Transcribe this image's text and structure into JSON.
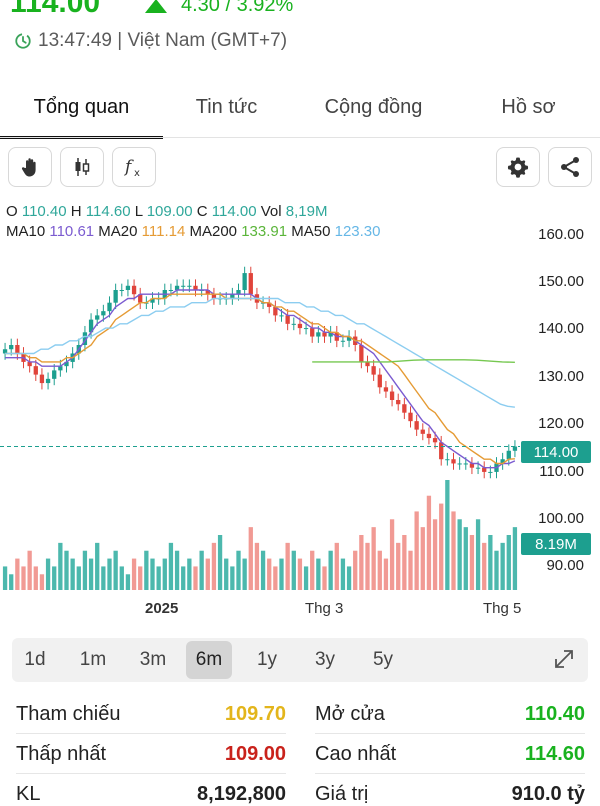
{
  "header": {
    "price": "114.00",
    "change": "4.30 / 3.92%",
    "time": "13:47:49 | Việt Nam (GMT+7)"
  },
  "tabs": [
    {
      "label": "Tổng quan",
      "active": true
    },
    {
      "label": "Tin tức",
      "active": false
    },
    {
      "label": "Cộng đồng",
      "active": false
    },
    {
      "label": "Hồ sơ",
      "active": false
    }
  ],
  "toolbar": {
    "icons": [
      "hand-icon",
      "candlestick-icon",
      "function-icon",
      "settings-icon",
      "share-icon"
    ]
  },
  "ohlc": {
    "o_label": "O",
    "o": "110.40",
    "h_label": "H",
    "h": "114.60",
    "l_label": "L",
    "l": "109.00",
    "c_label": "C",
    "c": "114.00",
    "vol_label": "Vol",
    "vol": "8,19M"
  },
  "ma": {
    "ma10_label": "MA10",
    "ma10": "110.61",
    "ma20_label": "MA20",
    "ma20": "111.14",
    "ma200_label": "MA200",
    "ma200": "133.91",
    "ma50_label": "MA50",
    "ma50": "123.30"
  },
  "chart_data": {
    "type": "candlestick",
    "y_ticks": [
      "160.00",
      "150.00",
      "140.00",
      "130.00",
      "120.00",
      "110.00",
      "100.00",
      "90.00"
    ],
    "y_tick_values": [
      160,
      150,
      140,
      130,
      120,
      110,
      100,
      90
    ],
    "ylim": [
      86,
      164
    ],
    "x_labels": [
      "2025",
      "Thg 3",
      "Thg 5"
    ],
    "current_price": 114.0,
    "current_price_label": "114.00",
    "volume_label": "8.19M",
    "closes": [
      137,
      138,
      136,
      134,
      133,
      131,
      129,
      130,
      132,
      133,
      134,
      136,
      138,
      141,
      144,
      145,
      146,
      148,
      151,
      151,
      152,
      150,
      148,
      148,
      149,
      149,
      151,
      151,
      152,
      152,
      152,
      151,
      151,
      150,
      149,
      149,
      149,
      150,
      151,
      155,
      150,
      148,
      148,
      147,
      145,
      145,
      143,
      143,
      142,
      142,
      140,
      141,
      140,
      141,
      139,
      139,
      140,
      138,
      134,
      133,
      131,
      128,
      127,
      125,
      124,
      122,
      120,
      118,
      117,
      116,
      115,
      111,
      111,
      110,
      110,
      110,
      109,
      109,
      108,
      108,
      110,
      111,
      113,
      114
    ],
    "ma10": [
      135,
      135,
      135,
      135,
      134,
      134,
      133,
      133,
      133,
      133,
      134,
      135,
      137,
      139,
      141,
      143,
      144,
      145,
      147,
      148,
      149,
      149,
      150,
      150,
      150,
      150,
      150,
      150,
      151,
      151,
      151,
      151,
      151,
      151,
      150,
      150,
      150,
      150,
      150,
      150,
      150,
      149,
      148,
      148,
      147,
      146,
      145,
      145,
      144,
      143,
      142,
      142,
      141,
      141,
      140,
      140,
      140,
      139,
      138,
      137,
      136,
      134,
      132,
      130,
      128,
      126,
      124,
      122,
      120,
      119,
      117,
      115,
      114,
      113,
      112,
      111,
      110,
      110,
      109,
      109,
      109,
      110,
      110,
      110.6
    ],
    "ma20": [
      136,
      136,
      136,
      136,
      135,
      135,
      134,
      134,
      134,
      134,
      135,
      135,
      136,
      137,
      138,
      140,
      141,
      142,
      144,
      145,
      146,
      147,
      148,
      148,
      149,
      149,
      149,
      150,
      150,
      150,
      150,
      150,
      150,
      150,
      150,
      150,
      149,
      149,
      149,
      149,
      149,
      149,
      148,
      148,
      147,
      147,
      146,
      146,
      145,
      144,
      143,
      143,
      142,
      141,
      141,
      140,
      140,
      139,
      139,
      138,
      137,
      136,
      135,
      134,
      133,
      131,
      129,
      127,
      125,
      123,
      122,
      120,
      118,
      117,
      115,
      114,
      113,
      112,
      111,
      111,
      110,
      110,
      111,
      111.1
    ],
    "ma50": [
      136,
      136,
      136,
      136,
      136,
      137,
      137,
      138,
      138,
      139,
      139,
      140,
      140,
      141,
      142,
      142,
      143,
      143,
      144,
      145,
      145,
      146,
      146,
      147,
      147,
      147,
      148,
      148,
      148,
      149,
      149,
      149,
      149,
      149,
      149,
      149,
      149,
      149,
      149,
      148,
      148,
      148,
      147,
      147,
      146,
      146,
      145,
      145,
      144,
      143,
      143,
      142,
      141,
      140,
      139,
      138,
      137,
      136,
      135,
      134,
      133,
      132,
      131,
      130,
      129,
      128,
      127,
      126,
      125,
      124,
      123.5,
      123.3
    ],
    "ma200": [
      134,
      134,
      134,
      134,
      134,
      134,
      134,
      134.2,
      134.4,
      134.5,
      134.5,
      134.5,
      134.5,
      134.4,
      134.2,
      134,
      133.9
    ],
    "volumes": [
      3,
      2,
      4,
      3,
      5,
      3,
      2,
      4,
      3,
      6,
      5,
      4,
      3,
      5,
      4,
      6,
      3,
      4,
      5,
      3,
      2,
      4,
      3,
      5,
      4,
      3,
      4,
      6,
      5,
      3,
      4,
      3,
      5,
      4,
      6,
      7,
      4,
      3,
      5,
      4,
      8,
      6,
      5,
      4,
      3,
      4,
      6,
      5,
      4,
      3,
      5,
      4,
      3,
      5,
      6,
      4,
      3,
      5,
      7,
      6,
      8,
      5,
      4,
      9,
      6,
      7,
      5,
      10,
      8,
      12,
      9,
      11,
      14,
      10,
      9,
      8,
      7,
      9,
      6,
      7,
      5,
      6,
      7,
      8
    ]
  },
  "periods": [
    {
      "label": "1d",
      "active": false
    },
    {
      "label": "1m",
      "active": false
    },
    {
      "label": "3m",
      "active": false
    },
    {
      "label": "6m",
      "active": true
    },
    {
      "label": "1y",
      "active": false
    },
    {
      "label": "3y",
      "active": false
    },
    {
      "label": "5y",
      "active": false
    }
  ],
  "stats": {
    "ref_label": "Tham chiếu",
    "ref": "109.70",
    "ref_color": "#e3b51b",
    "open_label": "Mở cửa",
    "open": "110.40",
    "open_color": "#19b21f",
    "low_label": "Thấp nhất",
    "low": "109.00",
    "low_color": "#c9221b",
    "high_label": "Cao nhất",
    "high": "114.60",
    "high_color": "#19b21f",
    "kl_label": "KL",
    "kl": "8,192,800",
    "value_label": "Giá trị",
    "value": "910.0 tỷ"
  },
  "colors": {
    "up": "#1d9f8f",
    "down": "#e0443b",
    "vol_up": "#4cb8ad",
    "vol_down": "#f19a94",
    "ma10": "#7b5bd0",
    "ma20": "#e59b35",
    "ma50": "#8ccdf0",
    "ma200": "#76c850",
    "price_line": "#1d9f8f"
  }
}
